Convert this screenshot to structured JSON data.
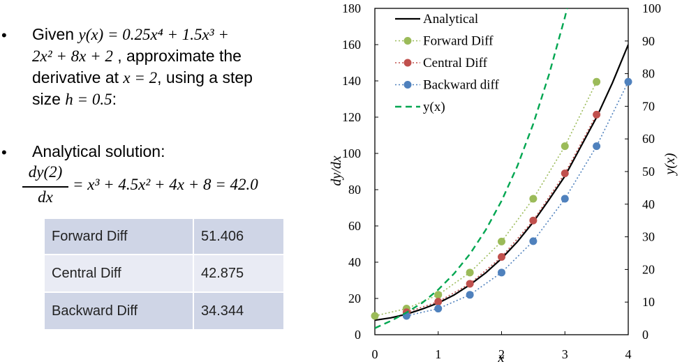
{
  "left_panel": {
    "bullet1": {
      "bullet": "•",
      "line1_text": "Given ",
      "line1_math": "y(x) = 0.25x⁴ + 1.5x³ +",
      "line2_math": "2x² + 8x + 2",
      "line2_text": " , approximate the",
      "line3_text": "derivative at ",
      "line3_math": "x = 2",
      "line3_text2": ", using a step",
      "line4_text": "size ",
      "line4_math": "h = 0.5",
      "line4_text2": ":"
    },
    "bullet2": {
      "bullet": "•",
      "text": "Analytical solution:",
      "frac_num": "dy(2)",
      "frac_den": "dx",
      "rhs": "= x³ + 4.5x² + 4x + 8 = 42.0"
    },
    "table": [
      {
        "method": "Forward Diff",
        "value": "51.406"
      },
      {
        "method": "Central Diff",
        "value": "42.875"
      },
      {
        "method": "Backward Diff",
        "value": "34.344"
      }
    ]
  },
  "chart_data": {
    "type": "line",
    "title": "",
    "xlabel": "x",
    "ylabel": "dy/dx",
    "y2label": "y(x)",
    "xlim": [
      0,
      4
    ],
    "ylim": [
      0,
      180
    ],
    "y2lim": [
      0,
      100
    ],
    "x_ticks": [
      0,
      1,
      2,
      3,
      4
    ],
    "y_ticks": [
      0,
      20,
      40,
      60,
      80,
      100,
      120,
      140,
      160,
      180
    ],
    "y2_ticks": [
      0,
      10,
      20,
      30,
      40,
      50,
      60,
      70,
      80,
      90,
      100
    ],
    "grid": false,
    "legend_position": "top-left",
    "series": [
      {
        "name": "Analytical",
        "axis": "left",
        "style": "solid",
        "color": "#000000",
        "x": [
          0,
          0.25,
          0.5,
          0.75,
          1,
          1.25,
          1.5,
          1.75,
          2,
          2.25,
          2.5,
          2.75,
          3,
          3.25,
          3.5,
          3.75,
          4
        ],
        "values": [
          8,
          9.3,
          11.3,
          14.2,
          17.5,
          21.9,
          27.5,
          34.1,
          42,
          51.3,
          62.1,
          74.5,
          87.5,
          103.6,
          119.9,
          138.9,
          160
        ]
      },
      {
        "name": "Forward Diff",
        "axis": "left",
        "style": "dotted",
        "color": "#9bbb59",
        "x": [
          0,
          0.5,
          1,
          1.5,
          2,
          2.5,
          3,
          3.5
        ],
        "values": [
          10.4,
          14.4,
          22.0,
          34.3,
          51.4,
          75.0,
          104.0,
          139.5
        ]
      },
      {
        "name": "Central Diff",
        "axis": "left",
        "style": "dotted",
        "color": "#c0504d",
        "x": [
          0.5,
          1,
          1.5,
          2,
          2.5,
          3,
          3.5
        ],
        "values": [
          12.4,
          18.2,
          28.1,
          42.9,
          63.0,
          89.0,
          121.4
        ]
      },
      {
        "name": "Backward diff",
        "axis": "left",
        "style": "dotted",
        "color": "#4f81bd",
        "x": [
          0.5,
          1,
          1.5,
          2,
          2.5,
          3,
          3.5,
          4
        ],
        "values": [
          10.4,
          14.4,
          22.0,
          34.3,
          51.6,
          75.0,
          104.0,
          139.5
        ]
      },
      {
        "name": "y(x)",
        "axis": "right",
        "style": "dashed",
        "color": "#00a651",
        "x": [
          0,
          0.25,
          0.5,
          0.75,
          1,
          1.25,
          1.5,
          1.75,
          2,
          2.25,
          2.5,
          2.75,
          3,
          3.1
        ],
        "values": [
          2,
          4.2,
          6.8,
          9.8,
          13.8,
          18.7,
          24.7,
          32.1,
          41.0,
          51.7,
          64.6,
          79.8,
          97.3,
          105.1
        ]
      }
    ]
  }
}
